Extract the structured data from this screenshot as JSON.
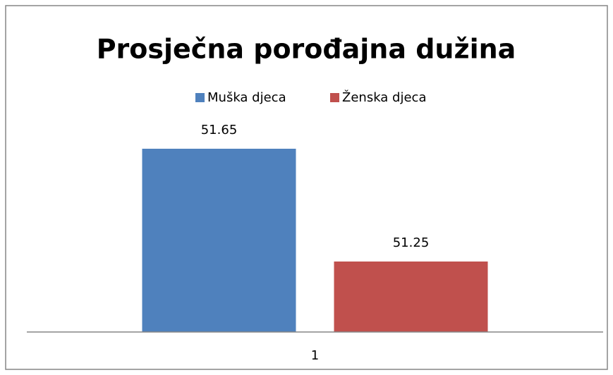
{
  "chart_data": {
    "type": "bar",
    "title": "Prosječna porođajna dužina",
    "categories": [
      "1"
    ],
    "series": [
      {
        "name": "Muška djeca",
        "color": "#4f81bd",
        "values": [
          51.65
        ]
      },
      {
        "name": "Ženska djeca",
        "color": "#c0504d",
        "values": [
          51.25
        ]
      }
    ],
    "ylim": [
      51,
      51.7
    ],
    "legend": "top"
  }
}
